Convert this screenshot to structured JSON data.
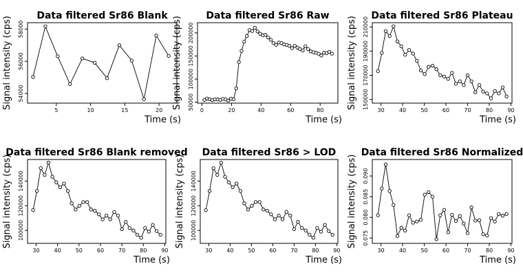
{
  "chart_data": [
    {
      "type": "scatter",
      "title": "Data filtered Sr86 Blank",
      "xlabel": "Time (s)",
      "ylabel": "Signal intensity (cps)",
      "xlim": [
        0.8,
        22.6
      ],
      "ylim": [
        53400,
        58400
      ],
      "xticks": [
        5,
        10,
        15,
        20
      ],
      "yticks": [
        54000,
        56000,
        58000
      ],
      "x": [
        1.6,
        3.4,
        5.2,
        7.0,
        8.8,
        10.6,
        12.4,
        14.2,
        16.0,
        17.8,
        19.6,
        21.4
      ],
      "y": [
        55030,
        58170,
        56310,
        54580,
        56180,
        55910,
        54950,
        57000,
        56050,
        53650,
        57600,
        56330
      ]
    },
    {
      "type": "scatter",
      "title": "Data filtered Sr86 Raw",
      "xlabel": "Time (s)",
      "ylabel": "Signal intensity (cps)",
      "xlim": [
        -3,
        92
      ],
      "ylim": [
        48000,
        222000
      ],
      "xticks": [
        0,
        20,
        40,
        60,
        80
      ],
      "yticks": [
        50000,
        100000,
        150000,
        200000
      ],
      "x": [
        1.6,
        3.4,
        5.2,
        7.0,
        8.8,
        10.6,
        12.4,
        14.2,
        16.0,
        17.8,
        19.6,
        21.4,
        23.2,
        25.0,
        26.8,
        28.6,
        30.4,
        32.2,
        34.0,
        35.8,
        37.6,
        39.4,
        41.2,
        43.0,
        44.8,
        46.6,
        48.4,
        50.2,
        52.0,
        53.8,
        55.6,
        57.4,
        59.2,
        61.0,
        62.8,
        64.6,
        66.4,
        68.2,
        70.0,
        71.8,
        73.6,
        75.4,
        77.2,
        79.0,
        80.8,
        82.6,
        84.4,
        86.2,
        88.0
      ],
      "y": [
        55000,
        58000,
        56300,
        54600,
        56200,
        55900,
        55000,
        57000,
        56000,
        53700,
        57600,
        56300,
        80000,
        137000,
        161000,
        181000,
        193000,
        206000,
        204000,
        211000,
        203000,
        198000,
        195000,
        196000,
        190000,
        185000,
        178000,
        174000,
        179000,
        178000,
        175000,
        174000,
        172000,
        167000,
        172000,
        168000,
        165000,
        162000,
        171000,
        165000,
        160000,
        158000,
        157000,
        155000,
        151000,
        157000,
        156000,
        159000,
        155000
      ]
    },
    {
      "type": "scatter",
      "title": "Data filtered Sr86 Plateau",
      "xlabel": "Time (s)",
      "ylabel": "Signal intensity (cps)",
      "xlim": [
        26,
        90.5
      ],
      "ylim": [
        147000,
        213500
      ],
      "xticks": [
        30,
        40,
        50,
        60,
        70,
        80,
        90
      ],
      "yticks": [
        150000,
        170000,
        190000,
        210000
      ],
      "x": [
        28.6,
        30.4,
        32.2,
        34.0,
        35.8,
        37.6,
        39.4,
        41.2,
        43.0,
        44.8,
        46.6,
        48.4,
        50.2,
        52.0,
        53.8,
        55.6,
        57.4,
        59.2,
        61.0,
        62.8,
        64.6,
        66.4,
        68.2,
        70.0,
        71.8,
        73.6,
        75.4,
        77.2,
        79.0,
        80.8,
        82.6,
        84.4,
        86.2,
        88.0
      ],
      "y": [
        173500,
        188500,
        206500,
        202500,
        210500,
        198000,
        194000,
        187000,
        191000,
        188000,
        182000,
        174000,
        171000,
        177000,
        178000,
        175000,
        170000,
        169000,
        167000,
        172000,
        163000,
        165000,
        162000,
        170000,
        165000,
        156000,
        162000,
        156500,
        155000,
        151000,
        157000,
        155000,
        160000,
        152500
      ]
    },
    {
      "type": "scatter",
      "title": "Data filtered Sr86 Blank removed",
      "xlabel": "Time (s)",
      "ylabel": "Signal intensity (cps)",
      "xlim": [
        26,
        90.5
      ],
      "ylim": [
        89500,
        157500
      ],
      "xticks": [
        30,
        40,
        50,
        60,
        70,
        80,
        90
      ],
      "yticks": [
        100000,
        120000,
        140000
      ],
      "x": [
        28.6,
        30.4,
        32.2,
        34.0,
        35.8,
        37.6,
        39.4,
        41.2,
        43.0,
        44.8,
        46.6,
        48.4,
        50.2,
        52.0,
        53.8,
        55.6,
        57.4,
        59.2,
        61.0,
        62.8,
        64.6,
        66.4,
        68.2,
        70.0,
        71.8,
        73.6,
        75.4,
        77.2,
        79.0,
        80.8,
        82.6,
        84.4,
        86.2,
        88.0
      ],
      "y": [
        116500,
        132000,
        150500,
        145000,
        155000,
        143500,
        139000,
        135000,
        138000,
        132000,
        122000,
        117000,
        120000,
        123000,
        123000,
        117000,
        116000,
        113000,
        109000,
        112000,
        109000,
        115000,
        112000,
        101000,
        107000,
        102000,
        100000,
        96500,
        94000,
        102000,
        99000,
        104500,
        99500,
        96500
      ]
    },
    {
      "type": "scatter",
      "title": "Data filtered Sr86 > LOD",
      "xlabel": "Time (s)",
      "ylabel": "Signal intensity (cps)",
      "xlim": [
        26,
        90.5
      ],
      "ylim": [
        89500,
        157500
      ],
      "xticks": [
        30,
        40,
        50,
        60,
        70,
        80,
        90
      ],
      "yticks": [
        100000,
        120000,
        140000
      ],
      "x": [
        28.6,
        30.4,
        32.2,
        34.0,
        35.8,
        37.6,
        39.4,
        41.2,
        43.0,
        44.8,
        46.6,
        48.4,
        50.2,
        52.0,
        53.8,
        55.6,
        57.4,
        59.2,
        61.0,
        62.8,
        64.6,
        66.4,
        68.2,
        70.0,
        71.8,
        73.6,
        75.4,
        77.2,
        79.0,
        80.8,
        82.6,
        84.4,
        86.2,
        88.0
      ],
      "y": [
        116500,
        132000,
        150500,
        145000,
        155000,
        143500,
        139000,
        135000,
        138000,
        132000,
        122000,
        117000,
        120000,
        123000,
        123000,
        117000,
        116000,
        113000,
        109000,
        112000,
        109000,
        115000,
        112000,
        101000,
        107000,
        102000,
        100000,
        96500,
        94000,
        102000,
        99000,
        104500,
        99500,
        96500
      ]
    },
    {
      "type": "scatter",
      "title": "Data filtered Sr86 Normalized",
      "xlabel": "Time (s)",
      "ylabel": "Signal intensity (cps)",
      "xlim": [
        26,
        90.5
      ],
      "ylim": [
        0.0737,
        0.094
      ],
      "xticks": [
        30,
        40,
        50,
        60,
        70,
        80,
        90
      ],
      "yticks": [
        0.075,
        0.08,
        0.085,
        0.09
      ],
      "ytick_labels": [
        "0.075",
        "0.080",
        "0.085",
        "0.090"
      ],
      "x": [
        28.6,
        30.4,
        32.2,
        34.0,
        35.8,
        37.6,
        39.4,
        41.2,
        43.0,
        44.8,
        46.6,
        48.4,
        50.2,
        52.0,
        53.8,
        55.6,
        57.4,
        59.2,
        61.0,
        62.8,
        64.6,
        66.4,
        68.2,
        70.0,
        71.8,
        73.6,
        75.4,
        77.2,
        79.0,
        80.8,
        82.6,
        84.4,
        86.2,
        88.0
      ],
      "y": [
        0.0805,
        0.087,
        0.0928,
        0.0864,
        0.083,
        0.0755,
        0.0775,
        0.0768,
        0.0805,
        0.0787,
        0.079,
        0.0794,
        0.0855,
        0.0861,
        0.085,
        0.0747,
        0.0805,
        0.0818,
        0.0764,
        0.0806,
        0.0791,
        0.0803,
        0.0785,
        0.0762,
        0.0824,
        0.0792,
        0.0793,
        0.0759,
        0.0756,
        0.0798,
        0.079,
        0.0808,
        0.0804,
        0.0808
      ]
    }
  ]
}
